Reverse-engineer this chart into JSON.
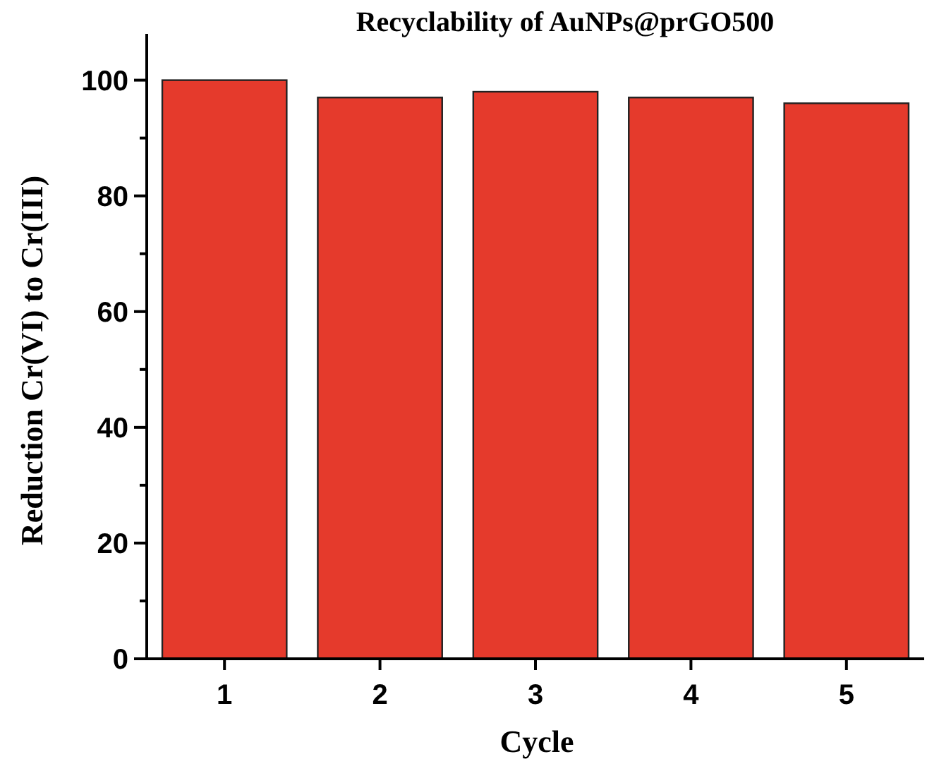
{
  "chart_data": {
    "type": "bar",
    "title": "Recyclability of AuNPs@prGO500",
    "xlabel": "Cycle",
    "ylabel": "Reduction Cr(VI) to Cr(III)",
    "categories": [
      "1",
      "2",
      "3",
      "4",
      "5"
    ],
    "values": [
      100,
      97,
      98,
      97,
      96
    ],
    "color": "#e53a2c",
    "ylim": [
      0,
      108
    ],
    "yticks": [
      0,
      {
        "value": 10,
        "label": null
      },
      20,
      {
        "value": 30,
        "label": null
      },
      40,
      {
        "value": 50,
        "label": null
      },
      60,
      {
        "value": 70,
        "label": null
      },
      80,
      {
        "value": 90,
        "label": null
      },
      100
    ],
    "grid": false
  }
}
